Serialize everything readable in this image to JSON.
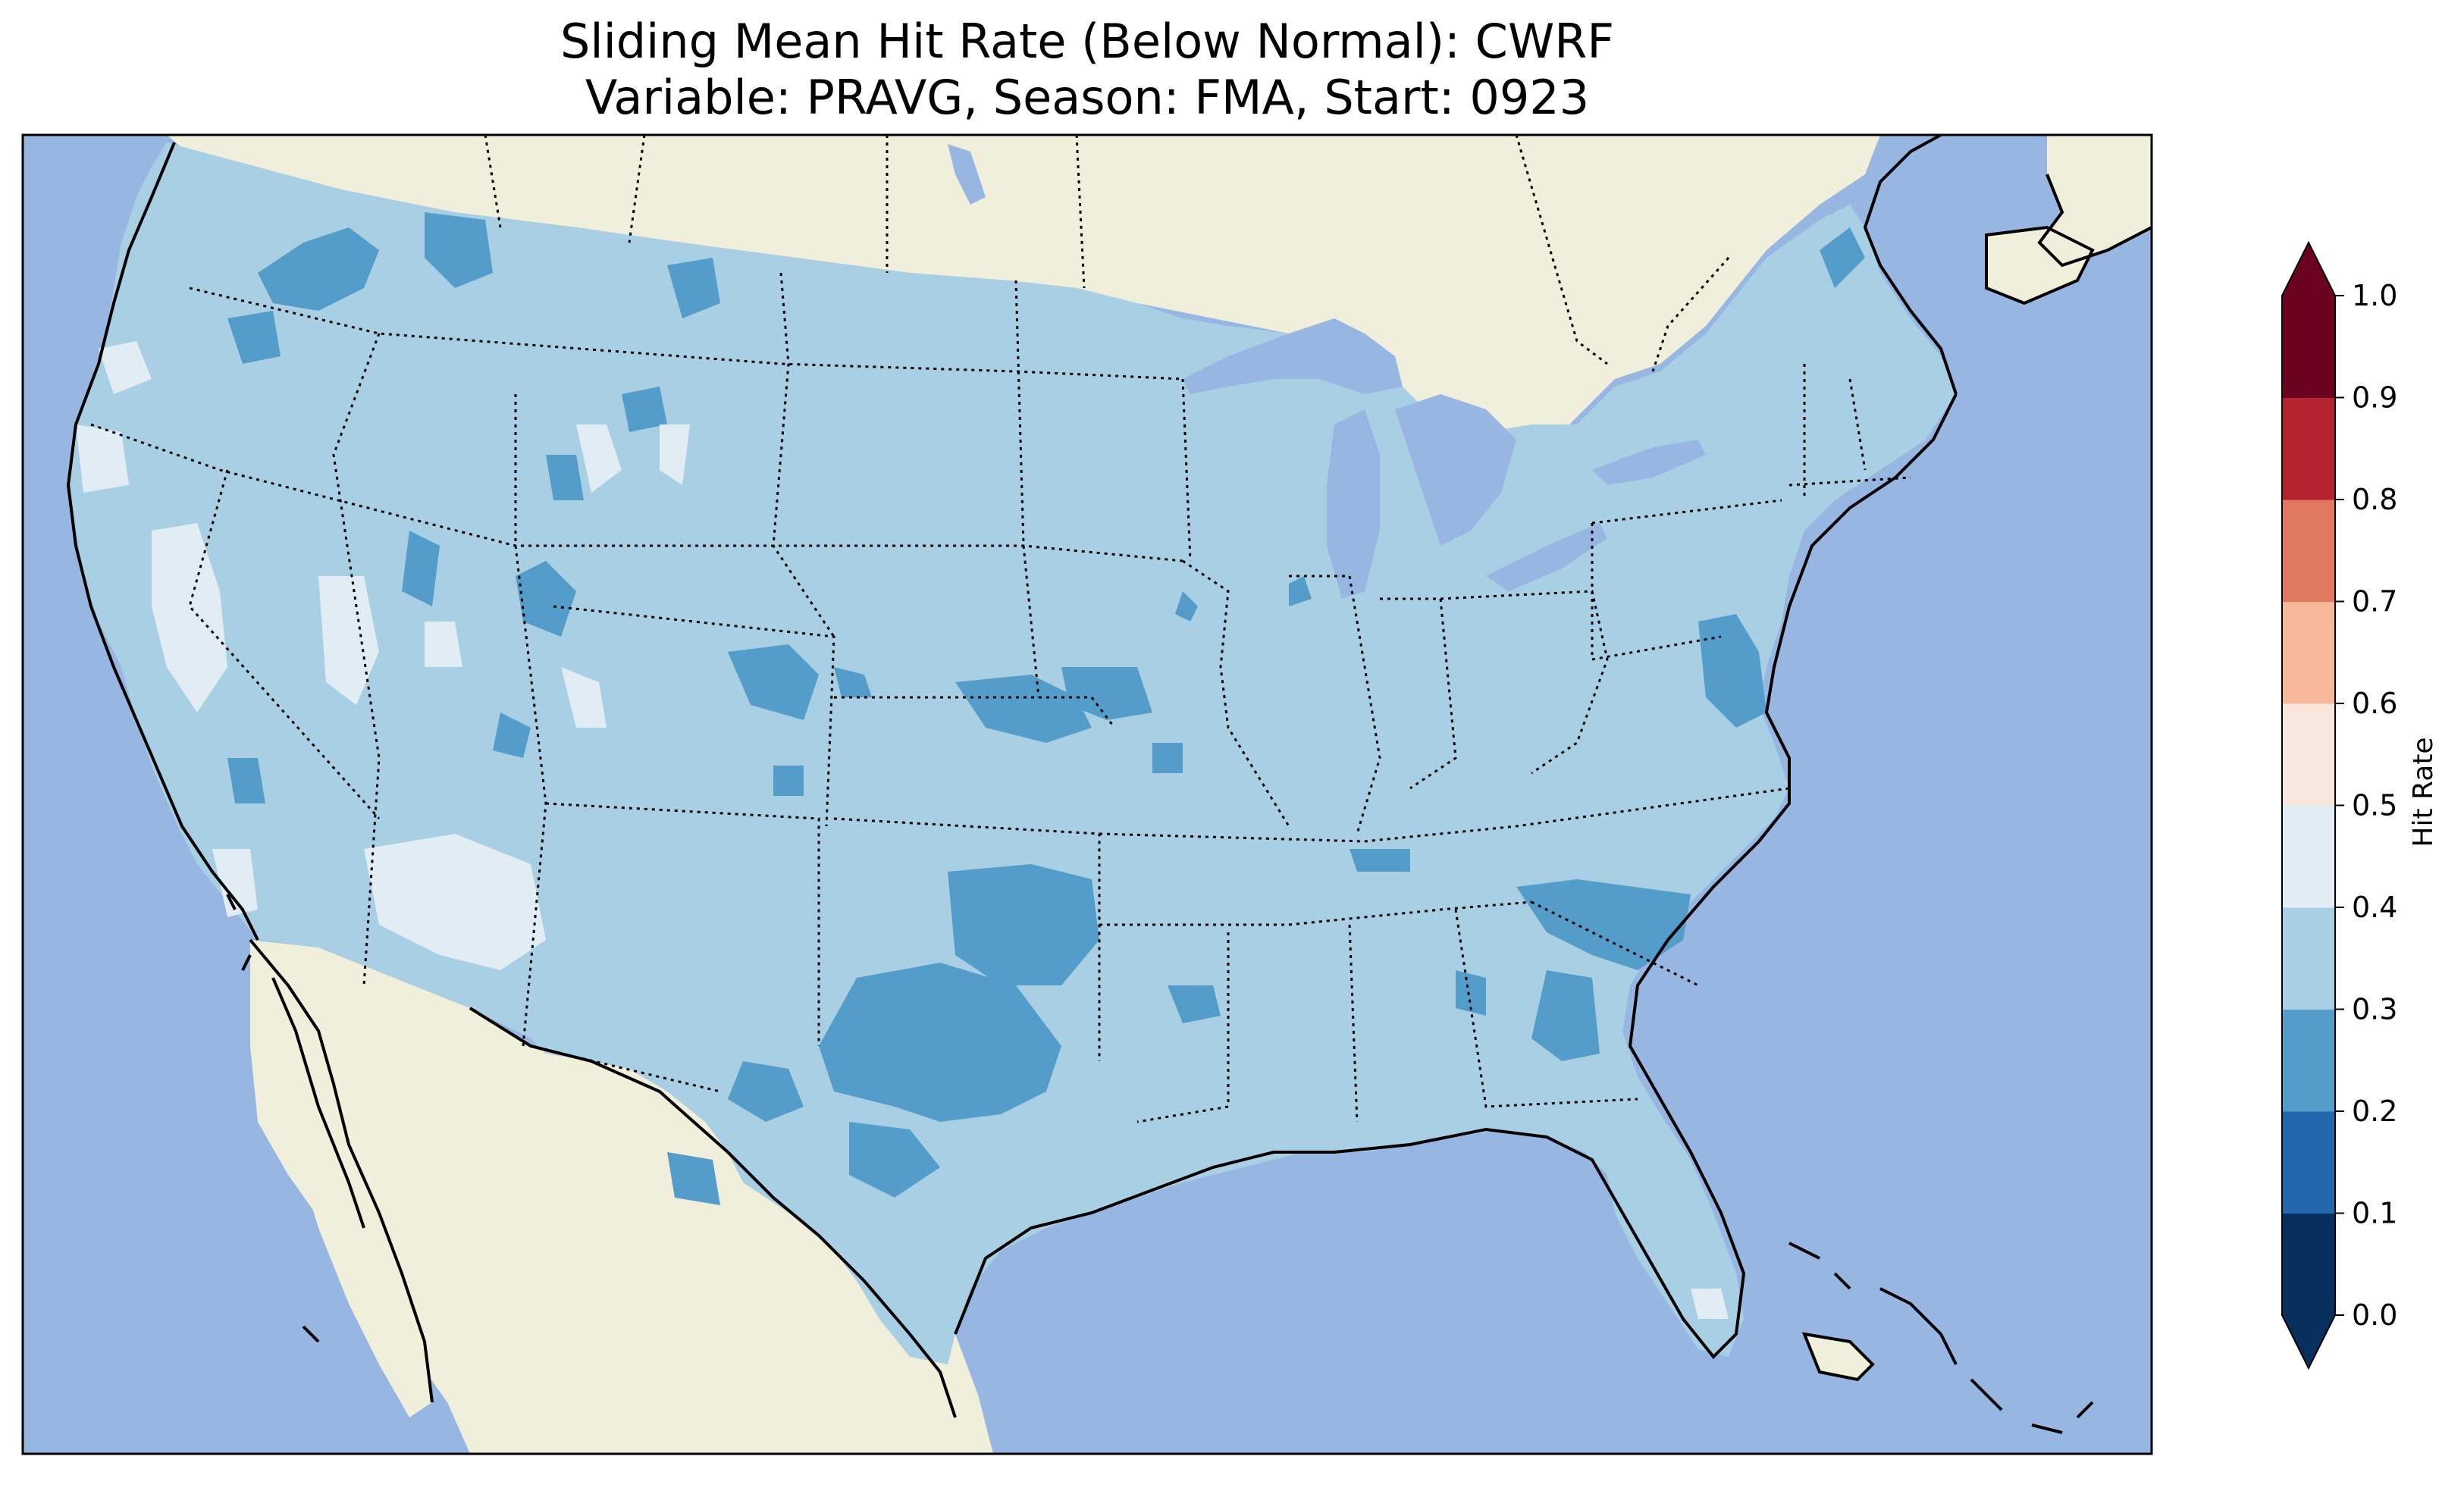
{
  "title": {
    "line1": "Sliding Mean Hit Rate (Below Normal): CWRF",
    "line2": "Variable: PRAVG, Season: FMA, Start: 0923"
  },
  "map": {
    "region": "Contiguous United States",
    "features": [
      "coastlines",
      "state-borders",
      "great-lakes",
      "ocean",
      "land"
    ],
    "colors": {
      "ocean": "#97b6e1",
      "land": "#efefdb",
      "lakes": "#97b6e1",
      "coast": "#000000"
    }
  },
  "legend": {
    "label": "Hit Rate",
    "placement": "right",
    "extend": "both",
    "ticks": [
      "0.0",
      "0.1",
      "0.2",
      "0.3",
      "0.4",
      "0.5",
      "0.6",
      "0.7",
      "0.8",
      "0.9",
      "1.0"
    ],
    "colors": [
      "#053061",
      "#2166ac",
      "#4393c3",
      "#92c5de",
      "#d1e5f0",
      "#f7f7f7",
      "#fddbc7",
      "#f4a582",
      "#d6604d",
      "#b2182b",
      "#67001f"
    ],
    "bins": [
      {
        "range": "0.0-0.1",
        "color": "#08305f"
      },
      {
        "range": "0.1-0.2",
        "color": "#2368ad"
      },
      {
        "range": "0.2-0.3",
        "color": "#549cc9"
      },
      {
        "range": "0.3-0.4",
        "color": "#a9cfe4"
      },
      {
        "range": "0.4-0.5",
        "color": "#e2ecf4"
      },
      {
        "range": "0.5-0.6",
        "color": "#f8e7dd"
      },
      {
        "range": "0.6-0.7",
        "color": "#f6b899"
      },
      {
        "range": "0.7-0.8",
        "color": "#df785f"
      },
      {
        "range": "0.8-0.9",
        "color": "#b52330"
      },
      {
        "range": "0.9-1.0",
        "color": "#6a0220"
      }
    ],
    "under_color": "#08305f",
    "over_color": "#6a0220"
  }
}
